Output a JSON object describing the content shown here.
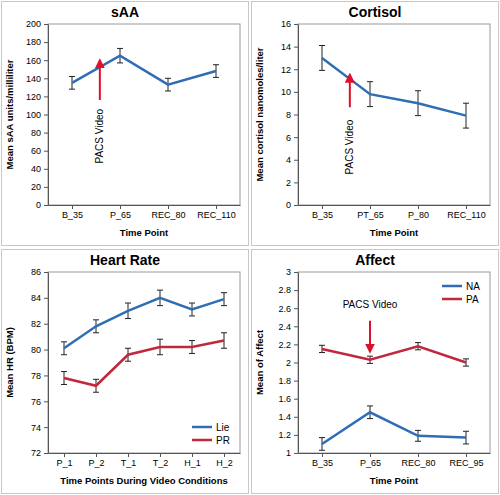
{
  "chart_data": [
    {
      "type": "line",
      "title": "sAA",
      "y_label": "Mean sAA units/milliliter",
      "x_label": "Time Point",
      "categories": [
        "B_35",
        "P_65",
        "REC_80",
        "REC_110"
      ],
      "values": [
        135,
        165,
        133,
        148
      ],
      "errors": [
        7,
        8,
        7,
        7
      ],
      "color": "#2f6db5",
      "ylim": [
        0,
        200
      ],
      "yticks": [
        0,
        20,
        40,
        60,
        80,
        100,
        120,
        140,
        160,
        180,
        200
      ],
      "annotation": "PACS Video"
    },
    {
      "type": "line",
      "title": "Cortisol",
      "y_label": "Mean cortisol nanomoles/liter",
      "x_label": "Time Point",
      "categories": [
        "B_35",
        "PT_65",
        "P_80",
        "REC_110"
      ],
      "values": [
        13.0,
        9.8,
        9.0,
        7.9
      ],
      "errors": [
        1.1,
        1.1,
        1.1,
        1.1
      ],
      "color": "#2f6db5",
      "ylim": [
        0,
        16
      ],
      "yticks": [
        0,
        2,
        4,
        6,
        8,
        10,
        12,
        14,
        16
      ],
      "annotation": "PACS Video"
    },
    {
      "type": "line",
      "title": "Heart Rate",
      "y_label": "Mean HR (BPM)",
      "x_label": "Time Points During Video Conditions",
      "categories": [
        "P_1",
        "P_2",
        "T_1",
        "T_2",
        "H_1",
        "H_2"
      ],
      "series": [
        {
          "name": "Lie",
          "color": "#2f6db5",
          "values": [
            80.1,
            81.8,
            83.0,
            84.0,
            83.1,
            83.9
          ],
          "errors": [
            0.5,
            0.5,
            0.6,
            0.6,
            0.5,
            0.5
          ]
        },
        {
          "name": "PR",
          "color": "#c0283c",
          "values": [
            77.8,
            77.2,
            79.6,
            80.2,
            80.2,
            80.7
          ],
          "errors": [
            0.5,
            0.5,
            0.5,
            0.6,
            0.5,
            0.6
          ]
        }
      ],
      "ylim": [
        72,
        86
      ],
      "yticks": [
        72,
        74,
        76,
        78,
        80,
        82,
        84,
        86
      ],
      "legend": "lower right"
    },
    {
      "type": "line",
      "title": "Affect",
      "y_label": "Mean of Affect",
      "x_label": "Time Point",
      "categories": [
        "B_35",
        "P_65",
        "REC_80",
        "REC_95"
      ],
      "series": [
        {
          "name": "NA",
          "color": "#2f6db5",
          "values": [
            1.1,
            1.45,
            1.19,
            1.17
          ],
          "errors": [
            0.07,
            0.07,
            0.06,
            0.07
          ]
        },
        {
          "name": "PA",
          "color": "#c0283c",
          "values": [
            2.15,
            2.03,
            2.18,
            2.0
          ],
          "errors": [
            0.04,
            0.04,
            0.04,
            0.04
          ]
        }
      ],
      "ylim": [
        1,
        3
      ],
      "yticks": [
        1,
        1.2,
        1.4,
        1.6,
        1.8,
        2,
        2.2,
        2.4,
        2.6,
        2.8,
        3
      ],
      "legend": "upper right",
      "annotation": "PACS Video"
    }
  ]
}
